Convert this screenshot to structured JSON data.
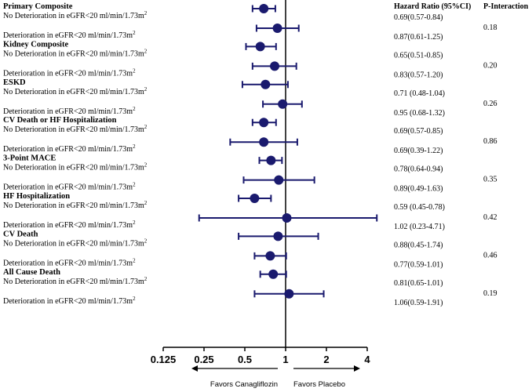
{
  "chart_data": {
    "type": "forest",
    "x_scale": "log2",
    "xlim": [
      0.125,
      4
    ],
    "reference_line": 1,
    "x_ticks": [
      "0.125",
      "0.25",
      "0.5",
      "1",
      "2",
      "4"
    ],
    "column_headers": {
      "hr": "Hazard Ratio (95%CI)",
      "p": "P-Interaction"
    },
    "favors_left": "Favors Canagliflozin",
    "favors_right": "Favors Placebo",
    "color": "#1a1a6e",
    "groups": [
      {
        "title": "Primary Composite",
        "p_interaction": "0.18",
        "rows": [
          {
            "label_main": "No Deterioration in eGFR<20 ml/min/1.73m",
            "sup": "2",
            "hr": 0.69,
            "lo": 0.57,
            "hi": 0.84,
            "text": "0.69(0.57-0.84)"
          },
          {
            "label_main": "Deterioration in eGFR<20 ml/min/1.73m",
            "sup": "2",
            "hr": 0.87,
            "lo": 0.61,
            "hi": 1.25,
            "text": "0.87(0.61-1.25)"
          }
        ]
      },
      {
        "title": "Kidney Composite",
        "p_interaction": "0.20",
        "rows": [
          {
            "label_main": "No Deterioration in eGFR<20 ml/min/1.73m",
            "sup": "2",
            "hr": 0.65,
            "lo": 0.51,
            "hi": 0.85,
            "text": "0.65(0.51-0.85)"
          },
          {
            "label_main": "Deterioration in eGFR<20 ml/min/1.73m",
            "sup": "2",
            "hr": 0.83,
            "lo": 0.57,
            "hi": 1.2,
            "text": "0.83(0.57-1.20)"
          }
        ]
      },
      {
        "title": "ESKD",
        "p_interaction": "0.26",
        "rows": [
          {
            "label_main": "No Deterioration in eGFR<20 ml/min/1.73m",
            "sup": "2",
            "hr": 0.71,
            "lo": 0.48,
            "hi": 1.04,
            "text": "0.71 (0.48-1.04)"
          },
          {
            "label_main": "Deterioration in eGFR<20 ml/min/1.73m",
            "sup": "2",
            "hr": 0.95,
            "lo": 0.68,
            "hi": 1.32,
            "text": "0.95 (0.68-1.32)"
          }
        ]
      },
      {
        "title": "CV Death or HF Hospitalization",
        "p_interaction": "0.86",
        "rows": [
          {
            "label_main": "No Deterioration in eGFR<20 ml/min/1.73m",
            "sup": "2",
            "hr": 0.69,
            "lo": 0.57,
            "hi": 0.85,
            "text": "0.69(0.57-0.85)"
          },
          {
            "label_main": "Deterioration in eGFR<20 ml/min/1.73m",
            "sup": "2",
            "hr": 0.69,
            "lo": 0.39,
            "hi": 1.22,
            "text": "0.69(0.39-1.22)"
          }
        ]
      },
      {
        "title": "3-Point MACE",
        "p_interaction": "0.35",
        "rows": [
          {
            "label_main": "No Deterioration in eGFR<20 ml/min/1.73m",
            "sup": "2",
            "hr": 0.78,
            "lo": 0.64,
            "hi": 0.94,
            "text": "0.78(0.64-0.94)"
          },
          {
            "label_main": "Deterioration in eGFR<20 ml/min/1.73m",
            "sup": "2",
            "hr": 0.89,
            "lo": 0.49,
            "hi": 1.63,
            "text": "0.89(0.49-1.63)"
          }
        ]
      },
      {
        "title": "HF Hospitalization",
        "p_interaction": "0.42",
        "rows": [
          {
            "label_main": "No Deterioration in eGFR<20 ml/min/1.73m",
            "sup": "2",
            "hr": 0.59,
            "lo": 0.45,
            "hi": 0.78,
            "text": "0.59 (0.45-0.78)"
          },
          {
            "label_main": "Deterioration in eGFR<20 ml/min/1.73m",
            "sup": "2",
            "hr": 1.02,
            "lo": 0.23,
            "hi": 4.71,
            "text": "1.02 (0.23-4.71)"
          }
        ]
      },
      {
        "title": "CV Death",
        "p_interaction": "0.46",
        "rows": [
          {
            "label_main": "No Deterioration in eGFR<20 ml/min/1.73m",
            "sup": "2",
            "hr": 0.88,
            "lo": 0.45,
            "hi": 1.74,
            "text": "0.88(0.45-1.74)"
          },
          {
            "label_main": "Deterioration in eGFR<20 ml/min/1.73m",
            "sup": "2",
            "hr": 0.77,
            "lo": 0.59,
            "hi": 1.01,
            "text": "0.77(0.59-1.01)"
          }
        ]
      },
      {
        "title": "All Cause Death",
        "p_interaction": "0.19",
        "rows": [
          {
            "label_main": "No Deterioration in eGFR<20 ml/min/1.73m",
            "sup": "2",
            "hr": 0.81,
            "lo": 0.65,
            "hi": 1.01,
            "text": "0.81(0.65-1.01)"
          },
          {
            "label_main": "Deterioration in eGFR<20 ml/min/1.73m",
            "sup": "2",
            "hr": 1.06,
            "lo": 0.59,
            "hi": 1.91,
            "text": "1.06(0.59-1.91)"
          }
        ]
      }
    ]
  }
}
